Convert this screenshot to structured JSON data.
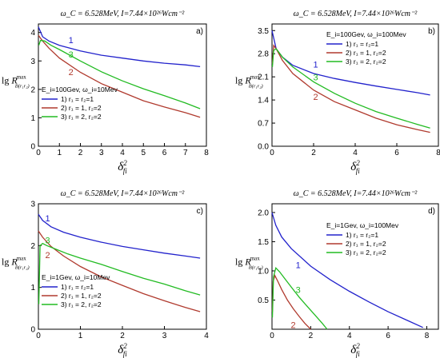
{
  "chart_data": [
    {
      "id": "a",
      "type": "line",
      "title": "ω_C = 6.528MeV, I=7.44×10²⁶Wcm⁻²",
      "panel_label": "a)",
      "ylabel": "lg R^max_{B(r1r2)}",
      "xlabel": "δ²_fi",
      "xlim": [
        0,
        8
      ],
      "ylim": [
        0,
        4.3
      ],
      "xticks": [
        "0",
        "1",
        "2",
        "3",
        "4",
        "5",
        "6",
        "7",
        "8"
      ],
      "yticks": [
        "0",
        "1",
        "2",
        "3",
        "4"
      ],
      "legend": {
        "placement": "center-left",
        "header": "E_i=100Gev, ω_i=10Mev",
        "entries": [
          "1) r₁ = r₂=1",
          "2) r₁ = 1, r₂=2",
          "3) r₁ = 2, r₂=2"
        ]
      },
      "series": [
        {
          "name": "1",
          "color": "#2222cc",
          "x": [
            0,
            0.2,
            0.5,
            1,
            2,
            3,
            4,
            5,
            6,
            7,
            7.7
          ],
          "y": [
            4.2,
            3.85,
            3.7,
            3.55,
            3.35,
            3.2,
            3.1,
            3.0,
            2.92,
            2.86,
            2.8
          ]
        },
        {
          "name": "2",
          "color": "#b03a2e",
          "x": [
            0,
            0.2,
            0.5,
            1,
            2,
            3,
            4,
            5,
            6,
            7,
            7.7
          ],
          "y": [
            3.9,
            3.7,
            3.45,
            3.1,
            2.6,
            2.2,
            1.9,
            1.6,
            1.38,
            1.18,
            1.02
          ]
        },
        {
          "name": "3",
          "color": "#22bb22",
          "x": [
            0.02,
            0.1,
            0.3,
            0.6,
            1,
            2,
            3,
            4,
            5,
            6,
            7,
            7.7
          ],
          "y": [
            3.55,
            3.72,
            3.7,
            3.55,
            3.4,
            3.0,
            2.62,
            2.3,
            2.02,
            1.78,
            1.52,
            1.32
          ]
        }
      ],
      "curve_labels": [
        {
          "text": "1",
          "x": 1.55,
          "y": 3.62
        },
        {
          "text": "3",
          "x": 1.55,
          "y": 3.12
        },
        {
          "text": "2",
          "x": 1.55,
          "y": 2.5
        }
      ]
    },
    {
      "id": "b",
      "type": "line",
      "title": "ω_C = 6.528MeV, I=7.44×10²⁶Wcm⁻²",
      "panel_label": "b)",
      "ylabel": "lg R^max_{B(r1r2)}",
      "xlabel": "δ²_fi",
      "xlim": [
        0,
        8
      ],
      "ylim": [
        0,
        3.7
      ],
      "xticks": [
        "0",
        "2",
        "4",
        "6",
        "8"
      ],
      "xtick_values": [
        0,
        2,
        4,
        6,
        8
      ],
      "yticks": [
        "0.0",
        "0.7",
        "1.4",
        "2.1",
        "2.8",
        "3.5"
      ],
      "ytick_values": [
        0,
        0.7,
        1.4,
        2.1,
        2.8,
        3.5
      ],
      "legend": {
        "placement": "top-right",
        "header": "E_i=100Gev, ω_i=100Mev",
        "entries": [
          "1) r₁ = r₂=1",
          "2) r₁ = 1, r₂=2",
          "3) r₁ = 2, r₂=2"
        ]
      },
      "series": [
        {
          "name": "1",
          "color": "#2222cc",
          "x": [
            0,
            0.2,
            0.5,
            1,
            2,
            3,
            4,
            5,
            6,
            7,
            7.6
          ],
          "y": [
            3.5,
            2.95,
            2.7,
            2.45,
            2.2,
            2.05,
            1.93,
            1.82,
            1.72,
            1.62,
            1.55
          ]
        },
        {
          "name": "2",
          "color": "#b03a2e",
          "x": [
            0.02,
            0.08,
            0.2,
            0.5,
            1,
            2,
            3,
            4,
            5,
            6,
            7,
            7.6
          ],
          "y": [
            2.5,
            3.05,
            2.95,
            2.6,
            2.2,
            1.7,
            1.35,
            1.1,
            0.85,
            0.65,
            0.5,
            0.42
          ]
        },
        {
          "name": "3",
          "color": "#22bb22",
          "x": [
            0.02,
            0.08,
            0.2,
            0.5,
            1,
            2,
            3,
            4,
            5,
            6,
            7,
            7.6
          ],
          "y": [
            2.4,
            2.9,
            2.95,
            2.7,
            2.4,
            1.95,
            1.6,
            1.3,
            1.05,
            0.85,
            0.66,
            0.55
          ]
        }
      ],
      "curve_labels": [
        {
          "text": "1",
          "x": 2.1,
          "y": 2.38
        },
        {
          "text": "3",
          "x": 2.1,
          "y": 2.0
        },
        {
          "text": "2",
          "x": 2.1,
          "y": 1.4
        }
      ]
    },
    {
      "id": "c",
      "type": "line",
      "title": "ω_C = 6.528MeV, I=7.44×10²⁶Wcm⁻²",
      "panel_label": "c)",
      "ylabel": "lg R^max_{B(r1r2)}",
      "xlabel": "δ²_fi",
      "xlim": [
        0,
        4
      ],
      "ylim": [
        0,
        3
      ],
      "xticks": [
        "0",
        "1",
        "2",
        "3",
        "4"
      ],
      "yticks": [
        "0",
        "1",
        "2",
        "3"
      ],
      "legend": {
        "placement": "bottom-left",
        "header": "E_i=1Gev, ω_i=10Mev",
        "entries": [
          "1) r₁ = r₂=1",
          "2) r₁ = 1, r₂=2",
          "3) r₁ = 2, r₂=2"
        ]
      },
      "series": [
        {
          "name": "1",
          "color": "#2222cc",
          "x": [
            0,
            0.1,
            0.3,
            0.6,
            1,
            1.5,
            2,
            2.5,
            3,
            3.5,
            3.85
          ],
          "y": [
            2.75,
            2.6,
            2.45,
            2.32,
            2.2,
            2.08,
            1.98,
            1.9,
            1.82,
            1.75,
            1.7
          ]
        },
        {
          "name": "2",
          "color": "#b03a2e",
          "x": [
            0,
            0.1,
            0.3,
            0.6,
            1,
            1.5,
            2,
            2.5,
            3,
            3.5,
            3.85
          ],
          "y": [
            2.35,
            2.2,
            1.98,
            1.75,
            1.5,
            1.25,
            1.05,
            0.85,
            0.68,
            0.52,
            0.42
          ]
        },
        {
          "name": "3",
          "color": "#22bb22",
          "x": [
            0.01,
            0.04,
            0.1,
            0.2,
            0.4,
            0.7,
            1,
            1.5,
            2,
            2.5,
            3,
            3.5,
            3.85
          ],
          "y": [
            0.6,
            2.0,
            2.05,
            2.0,
            1.92,
            1.8,
            1.7,
            1.55,
            1.38,
            1.22,
            1.08,
            0.92,
            0.82
          ]
        }
      ],
      "curve_labels": [
        {
          "text": "1",
          "x": 0.22,
          "y": 2.58
        },
        {
          "text": "3",
          "x": 0.22,
          "y": 2.05
        },
        {
          "text": "2",
          "x": 0.22,
          "y": 1.7
        }
      ]
    },
    {
      "id": "d",
      "type": "line",
      "title": "ω_C = 6.528MeV, I=7.44×10²⁶Wcm⁻²",
      "panel_label": "d)",
      "ylabel": "lg R^max_{B(r1r2)}",
      "xlabel": "δ²_fi",
      "xlim": [
        0,
        8.6
      ],
      "ylim": [
        0,
        2.15
      ],
      "xticks": [
        "0",
        "2",
        "4",
        "6",
        "8"
      ],
      "xtick_values": [
        0,
        2,
        4,
        6,
        8
      ],
      "yticks": [
        "0.5",
        "1.0",
        "1.5",
        "2.0"
      ],
      "ytick_values": [
        0.5,
        1.0,
        1.5,
        2.0
      ],
      "legend": {
        "placement": "top-right",
        "header": "E_i=1Gev, ω_i=100Mev",
        "entries": [
          "1) r₁ = r₂=1",
          "2) r₁ = 1, r₂=2",
          "3) r₁ = 2, r₂=2"
        ]
      },
      "series": [
        {
          "name": "1",
          "color": "#2222cc",
          "x": [
            0,
            0.2,
            0.5,
            1,
            2,
            3,
            4,
            5,
            6,
            7,
            7.8
          ],
          "y": [
            2.0,
            1.78,
            1.58,
            1.38,
            1.08,
            0.85,
            0.65,
            0.47,
            0.3,
            0.15,
            0.03
          ]
        },
        {
          "name": "2",
          "color": "#b03a2e",
          "x": [
            0.02,
            0.06,
            0.15,
            0.3,
            0.5,
            0.8,
            1.1,
            1.4,
            1.7,
            2.0
          ],
          "y": [
            0.3,
            0.82,
            0.92,
            0.82,
            0.68,
            0.5,
            0.35,
            0.22,
            0.1,
            0.0
          ]
        },
        {
          "name": "3",
          "color": "#22bb22",
          "x": [
            0.02,
            0.08,
            0.2,
            0.4,
            0.7,
            1.0,
            1.4,
            1.8,
            2.2,
            2.6,
            2.85
          ],
          "y": [
            0.2,
            0.9,
            1.05,
            0.98,
            0.85,
            0.72,
            0.55,
            0.4,
            0.25,
            0.1,
            0.0
          ]
        }
      ],
      "curve_labels": [
        {
          "text": "1",
          "x": 1.35,
          "y": 1.05
        },
        {
          "text": "3",
          "x": 1.35,
          "y": 0.62
        },
        {
          "text": "2",
          "x": 1.1,
          "y": 0.02
        }
      ]
    }
  ]
}
